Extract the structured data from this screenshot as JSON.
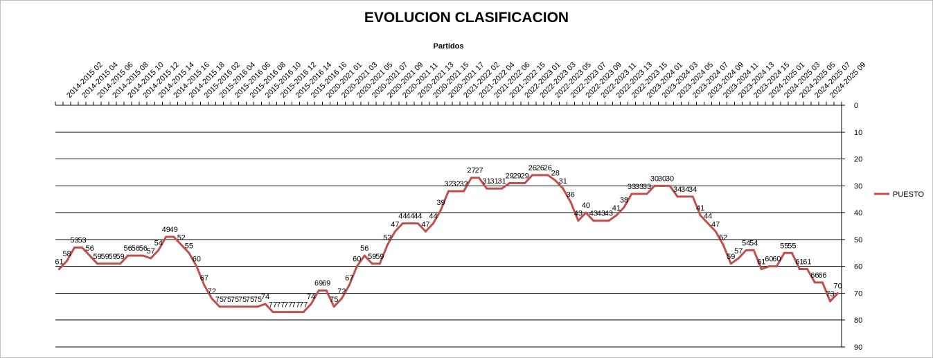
{
  "chart_data": {
    "type": "line",
    "title": "EVOLUCION CLASIFICACION",
    "xlabel": "Partidos",
    "ylabel": "",
    "ylim": [
      0,
      90
    ],
    "y_reversed": true,
    "y_axis_side": "right",
    "y_ticks": [
      0,
      10,
      20,
      30,
      40,
      50,
      60,
      70,
      80,
      90
    ],
    "grid": "horizontal",
    "legend_position": "right",
    "series_color": "#c0504d",
    "x_tick_labels": [
      "2014-2015 02",
      "2014-2015 04",
      "2014-2015 06",
      "2014-2015 08",
      "2014-2015 10",
      "2014-2015 12",
      "2014-2015 14",
      "2014-2015 16",
      "2014-2015 18",
      "2015-2016 02",
      "2015-2016 04",
      "2015-2016 06",
      "2015-2016 08",
      "2015-2016 10",
      "2015-2016 12",
      "2015-2016 14",
      "2015-2016 16",
      "2020-2021 01",
      "2020-2021 03",
      "2020-2021 05",
      "2020-2021 07",
      "2020-2021 09",
      "2020-2021 11",
      "2020-2021 13",
      "2020-2021 15",
      "2020-2021 17",
      "2021-2022 02",
      "2021-2022 04",
      "2021-2022 06",
      "2021-2022 15",
      "2022-2023 01",
      "2022-2023 03",
      "2022-2023 05",
      "2022-2023 07",
      "2022-2023 09",
      "2022-2023 11",
      "2022-2023 13",
      "2022-2023 15",
      "2023-2024 01",
      "2023-2024 03",
      "2023-2024 05",
      "2023-2024 07",
      "2023-2024 09",
      "2023-2024 11",
      "2023-2024 13",
      "2023-2024 15",
      "2024-2025 01",
      "2024-2025 03",
      "2024-2025 05",
      "2024-2025 07",
      "2024-2025 09"
    ],
    "series": [
      {
        "name": "PUESTO",
        "values": [
          61,
          58,
          53,
          53,
          56,
          59,
          59,
          59,
          59,
          56,
          56,
          56,
          57,
          54,
          49,
          49,
          52,
          55,
          60,
          67,
          72,
          75,
          75,
          75,
          75,
          75,
          75,
          74,
          77,
          77,
          77,
          77,
          77,
          74,
          69,
          69,
          75,
          72,
          67,
          60,
          56,
          59,
          59,
          52,
          47,
          44,
          44,
          44,
          47,
          44,
          39,
          32,
          32,
          32,
          27,
          27,
          31,
          31,
          31,
          29,
          29,
          29,
          26,
          26,
          26,
          28,
          31,
          36,
          43,
          40,
          43,
          43,
          43,
          41,
          38,
          33,
          33,
          33,
          30,
          30,
          30,
          34,
          34,
          34,
          41,
          44,
          47,
          52,
          59,
          57,
          54,
          54,
          61,
          60,
          60,
          55,
          55,
          61,
          61,
          66,
          66,
          73,
          70
        ]
      }
    ]
  }
}
